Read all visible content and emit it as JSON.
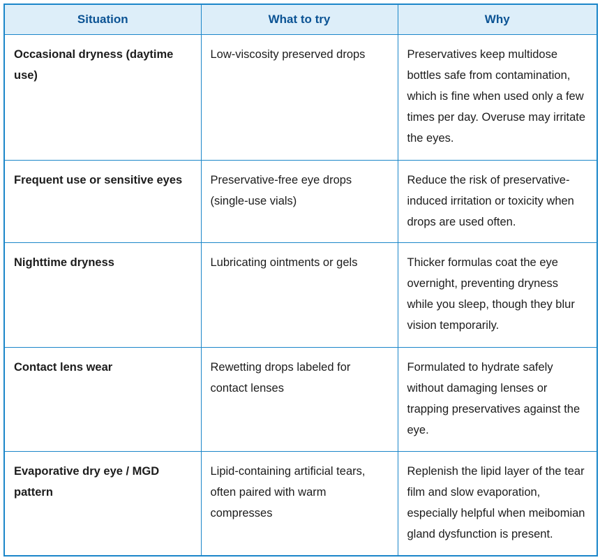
{
  "colors": {
    "border": "#1b86c9",
    "header_background": "#ddeef9",
    "header_text": "#0b5394",
    "body_text": "#1c1c1c"
  },
  "table": {
    "headers": [
      {
        "label": "Situation"
      },
      {
        "label": "What to try"
      },
      {
        "label": "Why"
      }
    ],
    "rows": [
      {
        "situation": "Occasional dryness (daytime use)",
        "what_to_try": "Low-viscosity preserved drops",
        "why": "Preservatives keep multidose bottles safe from contamination, which is fine when used only a few times per day. Overuse may irritate the eyes."
      },
      {
        "situation": "Frequent use or sensitive eyes",
        "what_to_try": "Preservative-free eye drops (single-use vials)",
        "why": "Reduce the risk of preservative-induced irritation or toxicity when drops are used often."
      },
      {
        "situation": "Nighttime dryness",
        "what_to_try": "Lubricating ointments or gels",
        "why": "Thicker formulas coat the eye overnight, preventing dryness while you sleep, though they blur vision temporarily."
      },
      {
        "situation": "Contact lens wear",
        "what_to_try": "Rewetting drops labeled for contact lenses",
        "why": "Formulated to hydrate safely without damaging lenses or trapping preservatives against the eye."
      },
      {
        "situation": "Evaporative dry eye / MGD pattern",
        "what_to_try": "Lipid-containing artificial tears, often paired with warm compresses",
        "why": "Replenish the lipid layer of the tear film and slow evaporation, especially helpful when meibomian gland dysfunction is present."
      }
    ]
  }
}
